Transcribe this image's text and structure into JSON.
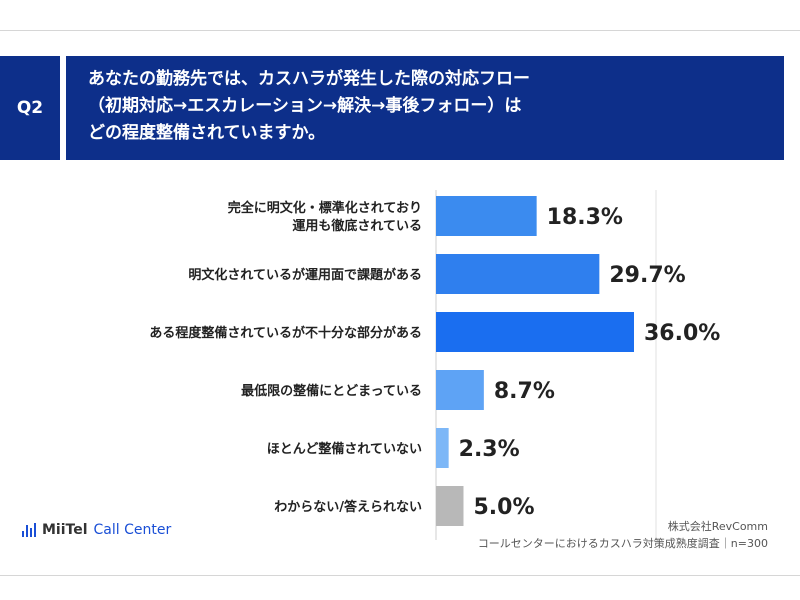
{
  "question": {
    "badge": "Q2",
    "lines": [
      "あなたの勤務先では、カスハラが発生した際の対応フロー",
      "（初期対応→エスカレーション→解決→事後フォロー）は",
      "どの程度整備されていますか。"
    ]
  },
  "chart_data": {
    "type": "bar",
    "orientation": "horizontal",
    "categories": [
      [
        "完全に明文化・標準化されており",
        "運用も徹底されている"
      ],
      [
        "明文化されているが運用面で課題がある"
      ],
      [
        "ある程度整備されているが不十分な部分がある"
      ],
      [
        "最低限の整備にとどまっている"
      ],
      [
        "ほとんど整備されていない"
      ],
      [
        "わからない/答えられない"
      ]
    ],
    "values": [
      18.3,
      29.7,
      36.0,
      8.7,
      2.3,
      5.0
    ],
    "value_labels": [
      "18.3%",
      "29.7%",
      "36.0%",
      "8.7%",
      "2.3%",
      "5.0%"
    ],
    "colors": [
      "#3b8bef",
      "#2f7fee",
      "#1a6ef0",
      "#5ea3f5",
      "#7db7f7",
      "#b8b8b8"
    ],
    "xlim": [
      0,
      40
    ],
    "grid": true
  },
  "footer": {
    "logo_brand": "MiiTel",
    "logo_sub": "Call Center",
    "source_line1": "株式会社RevComm",
    "source_line2": "コールセンターにおけるカスハラ対策成熟度調査｜n=300"
  }
}
